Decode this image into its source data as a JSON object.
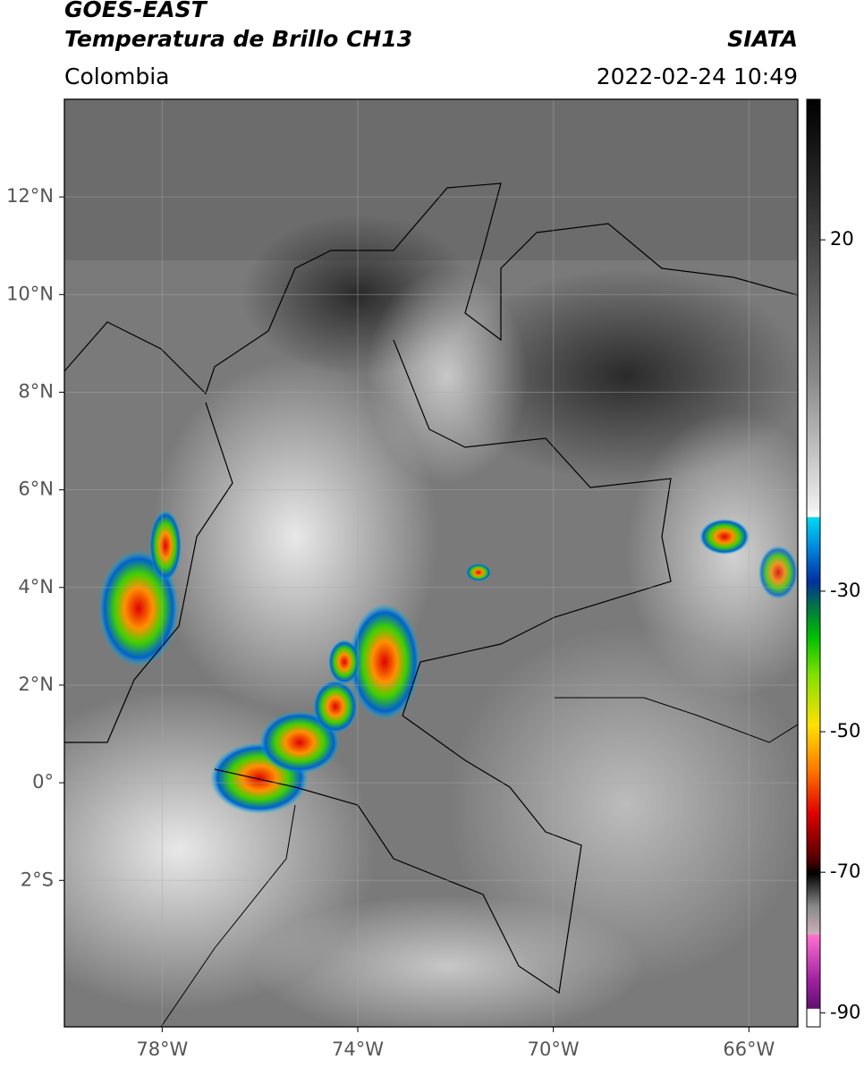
{
  "header": {
    "title": "GOES-EAST",
    "subtitle": "Temperatura de Brillo CH13",
    "source": "SIATA",
    "region": "Colombia",
    "datetime": "2022-02-24 10:49"
  },
  "map": {
    "xlim": [
      -80,
      -65
    ],
    "ylim": [
      -5,
      14
    ],
    "xticks": [
      {
        "value": -78,
        "label": "78°W"
      },
      {
        "value": -74,
        "label": "74°W"
      },
      {
        "value": -70,
        "label": "70°W"
      },
      {
        "value": -66,
        "label": "66°W"
      }
    ],
    "yticks": [
      {
        "value": 12,
        "label": "12°N"
      },
      {
        "value": 10,
        "label": "10°N"
      },
      {
        "value": 8,
        "label": "8°N"
      },
      {
        "value": 6,
        "label": "6°N"
      },
      {
        "value": 4,
        "label": "4°N"
      },
      {
        "value": 2,
        "label": "2°N"
      },
      {
        "value": 0,
        "label": "0°"
      },
      {
        "value": -2,
        "label": "2°S"
      }
    ],
    "grid": true
  },
  "colorbar": {
    "lim": [
      -92,
      40
    ],
    "ticks": [
      20,
      -30,
      -50,
      -70,
      -90
    ]
  }
}
